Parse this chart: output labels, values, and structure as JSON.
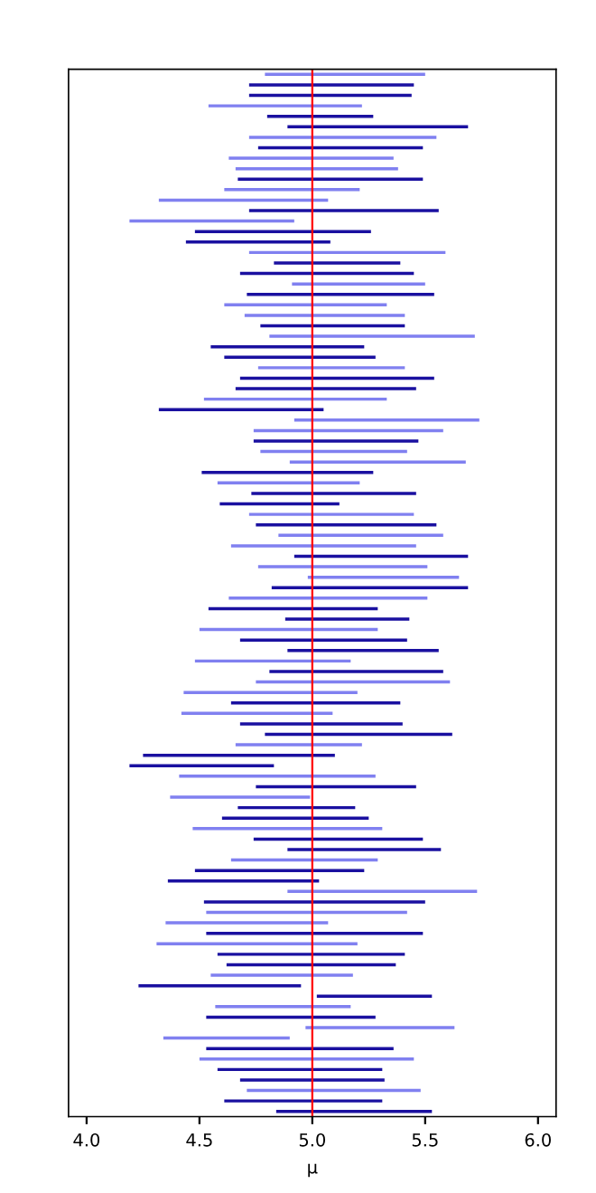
{
  "chart_data": {
    "type": "bar",
    "orientation": "horizontal",
    "xlabel": "μ",
    "categories": [
      null,
      null,
      null,
      null,
      null,
      null,
      null,
      null,
      null,
      null,
      null,
      null,
      null,
      null,
      null,
      null,
      null,
      null,
      null,
      null,
      null,
      null,
      null,
      null,
      null,
      null,
      null,
      null,
      null,
      null,
      null,
      null,
      null,
      null,
      null,
      null,
      null,
      null,
      null,
      null,
      null,
      null,
      null,
      null,
      null,
      null,
      null,
      null,
      null,
      null,
      null,
      null,
      null,
      null,
      null,
      null,
      null,
      null,
      null,
      null,
      null,
      null,
      null,
      null,
      null,
      null,
      null,
      null,
      null,
      null,
      null,
      null,
      null,
      null,
      null,
      null,
      null,
      null,
      null,
      null,
      null,
      null,
      null,
      null,
      null,
      null,
      null,
      null,
      null,
      null,
      null,
      null,
      null,
      null,
      null,
      null,
      null,
      null,
      null,
      null
    ],
    "base": [
      4.79,
      4.72,
      4.72,
      4.54,
      4.8,
      4.89,
      4.72,
      4.76,
      4.63,
      4.66,
      4.67,
      4.61,
      4.32,
      4.72,
      4.19,
      4.48,
      4.44,
      4.72,
      4.83,
      4.68,
      4.91,
      4.71,
      4.61,
      4.7,
      4.77,
      4.81,
      4.55,
      4.61,
      4.76,
      4.68,
      4.66,
      4.52,
      4.32,
      4.92,
      4.74,
      4.74,
      4.77,
      4.9,
      4.51,
      4.58,
      4.73,
      4.59,
      4.72,
      4.75,
      4.85,
      4.64,
      4.92,
      4.76,
      4.98,
      4.82,
      4.63,
      4.54,
      4.88,
      4.5,
      4.68,
      4.89,
      4.48,
      4.81,
      4.75,
      4.43,
      4.64,
      4.42,
      4.68,
      4.79,
      4.66,
      4.25,
      4.19,
      4.41,
      4.75,
      4.37,
      4.67,
      4.6,
      4.47,
      4.74,
      4.89,
      4.64,
      4.48,
      4.36,
      4.89,
      4.52,
      4.53,
      4.35,
      4.53,
      4.31,
      4.58,
      4.62,
      4.55,
      4.23,
      5.02,
      4.57,
      4.53,
      4.97,
      4.34,
      4.53,
      4.5,
      4.58,
      4.68,
      4.71,
      4.61,
      4.84
    ],
    "values": [
      0.71,
      0.73,
      0.72,
      0.68,
      0.47,
      0.8,
      0.83,
      0.73,
      0.73,
      0.72,
      0.82,
      0.6,
      0.75,
      0.84,
      0.73,
      0.78,
      0.64,
      0.87,
      0.56,
      0.77,
      0.59,
      0.83,
      0.72,
      0.71,
      0.64,
      0.91,
      0.68,
      0.67,
      0.65,
      0.86,
      0.8,
      0.81,
      0.73,
      0.82,
      0.84,
      0.73,
      0.65,
      0.78,
      0.76,
      0.63,
      0.73,
      0.53,
      0.73,
      0.8,
      0.73,
      0.82,
      0.77,
      0.75,
      0.67,
      0.87,
      0.88,
      0.75,
      0.55,
      0.79,
      0.74,
      0.67,
      0.69,
      0.77,
      0.86,
      0.77,
      0.75,
      0.67,
      0.72,
      0.83,
      0.56,
      0.85,
      0.64,
      0.87,
      0.71,
      0.62,
      0.52,
      0.65,
      0.84,
      0.75,
      0.68,
      0.65,
      0.75,
      0.67,
      0.84,
      0.98,
      0.89,
      0.72,
      0.96,
      0.89,
      0.83,
      0.75,
      0.63,
      0.72,
      0.51,
      0.6,
      0.75,
      0.66,
      0.56,
      0.83,
      0.95,
      0.73,
      0.64,
      0.77,
      0.7,
      0.69
    ],
    "colors": [
      "#8080f0",
      "#1a10a0",
      "#1a10a0",
      "#8080f0",
      "#1a10a0",
      "#1a10a0",
      "#8080f0",
      "#1a10a0",
      "#8080f0",
      "#8080f0",
      "#1a10a0",
      "#8080f0",
      "#8080f0",
      "#1a10a0",
      "#8080f0",
      "#1a10a0",
      "#1a10a0",
      "#8080f0",
      "#1a10a0",
      "#1a10a0",
      "#8080f0",
      "#1a10a0",
      "#8080f0",
      "#8080f0",
      "#1a10a0",
      "#8080f0",
      "#1a10a0",
      "#1a10a0",
      "#8080f0",
      "#1a10a0",
      "#1a10a0",
      "#8080f0",
      "#1a10a0",
      "#8080f0",
      "#8080f0",
      "#1a10a0",
      "#8080f0",
      "#8080f0",
      "#1a10a0",
      "#8080f0",
      "#1a10a0",
      "#1a10a0",
      "#8080f0",
      "#1a10a0",
      "#8080f0",
      "#8080f0",
      "#1a10a0",
      "#8080f0",
      "#8080f0",
      "#1a10a0",
      "#8080f0",
      "#1a10a0",
      "#1a10a0",
      "#8080f0",
      "#1a10a0",
      "#1a10a0",
      "#8080f0",
      "#1a10a0",
      "#8080f0",
      "#8080f0",
      "#1a10a0",
      "#8080f0",
      "#1a10a0",
      "#1a10a0",
      "#8080f0",
      "#1a10a0",
      "#1a10a0",
      "#8080f0",
      "#1a10a0",
      "#8080f0",
      "#1a10a0",
      "#1a10a0",
      "#8080f0",
      "#1a10a0",
      "#1a10a0",
      "#8080f0",
      "#1a10a0",
      "#1a10a0",
      "#8080f0",
      "#1a10a0",
      "#8080f0",
      "#8080f0",
      "#1a10a0",
      "#8080f0",
      "#1a10a0",
      "#1a10a0",
      "#8080f0",
      "#1a10a0",
      "#1a10a0",
      "#8080f0",
      "#1a10a0",
      "#8080f0",
      "#8080f0",
      "#1a10a0",
      "#8080f0",
      "#1a10a0",
      "#1a10a0",
      "#8080f0",
      "#1a10a0",
      "#1a10a0"
    ],
    "xlim": [
      3.92,
      6.08
    ],
    "xticks": [
      {
        "value": 4,
        "label": "4.0"
      },
      {
        "value": 4.5,
        "label": "4.5"
      },
      {
        "value": 5,
        "label": "5.0"
      },
      {
        "value": 5.5,
        "label": "5.5"
      },
      {
        "value": 6,
        "label": "6.0"
      }
    ],
    "tick_labels": "x",
    "ref_lines": [
      {
        "axis": "x",
        "value": 5,
        "color": "#ff0000"
      }
    ],
    "grid": false
  }
}
